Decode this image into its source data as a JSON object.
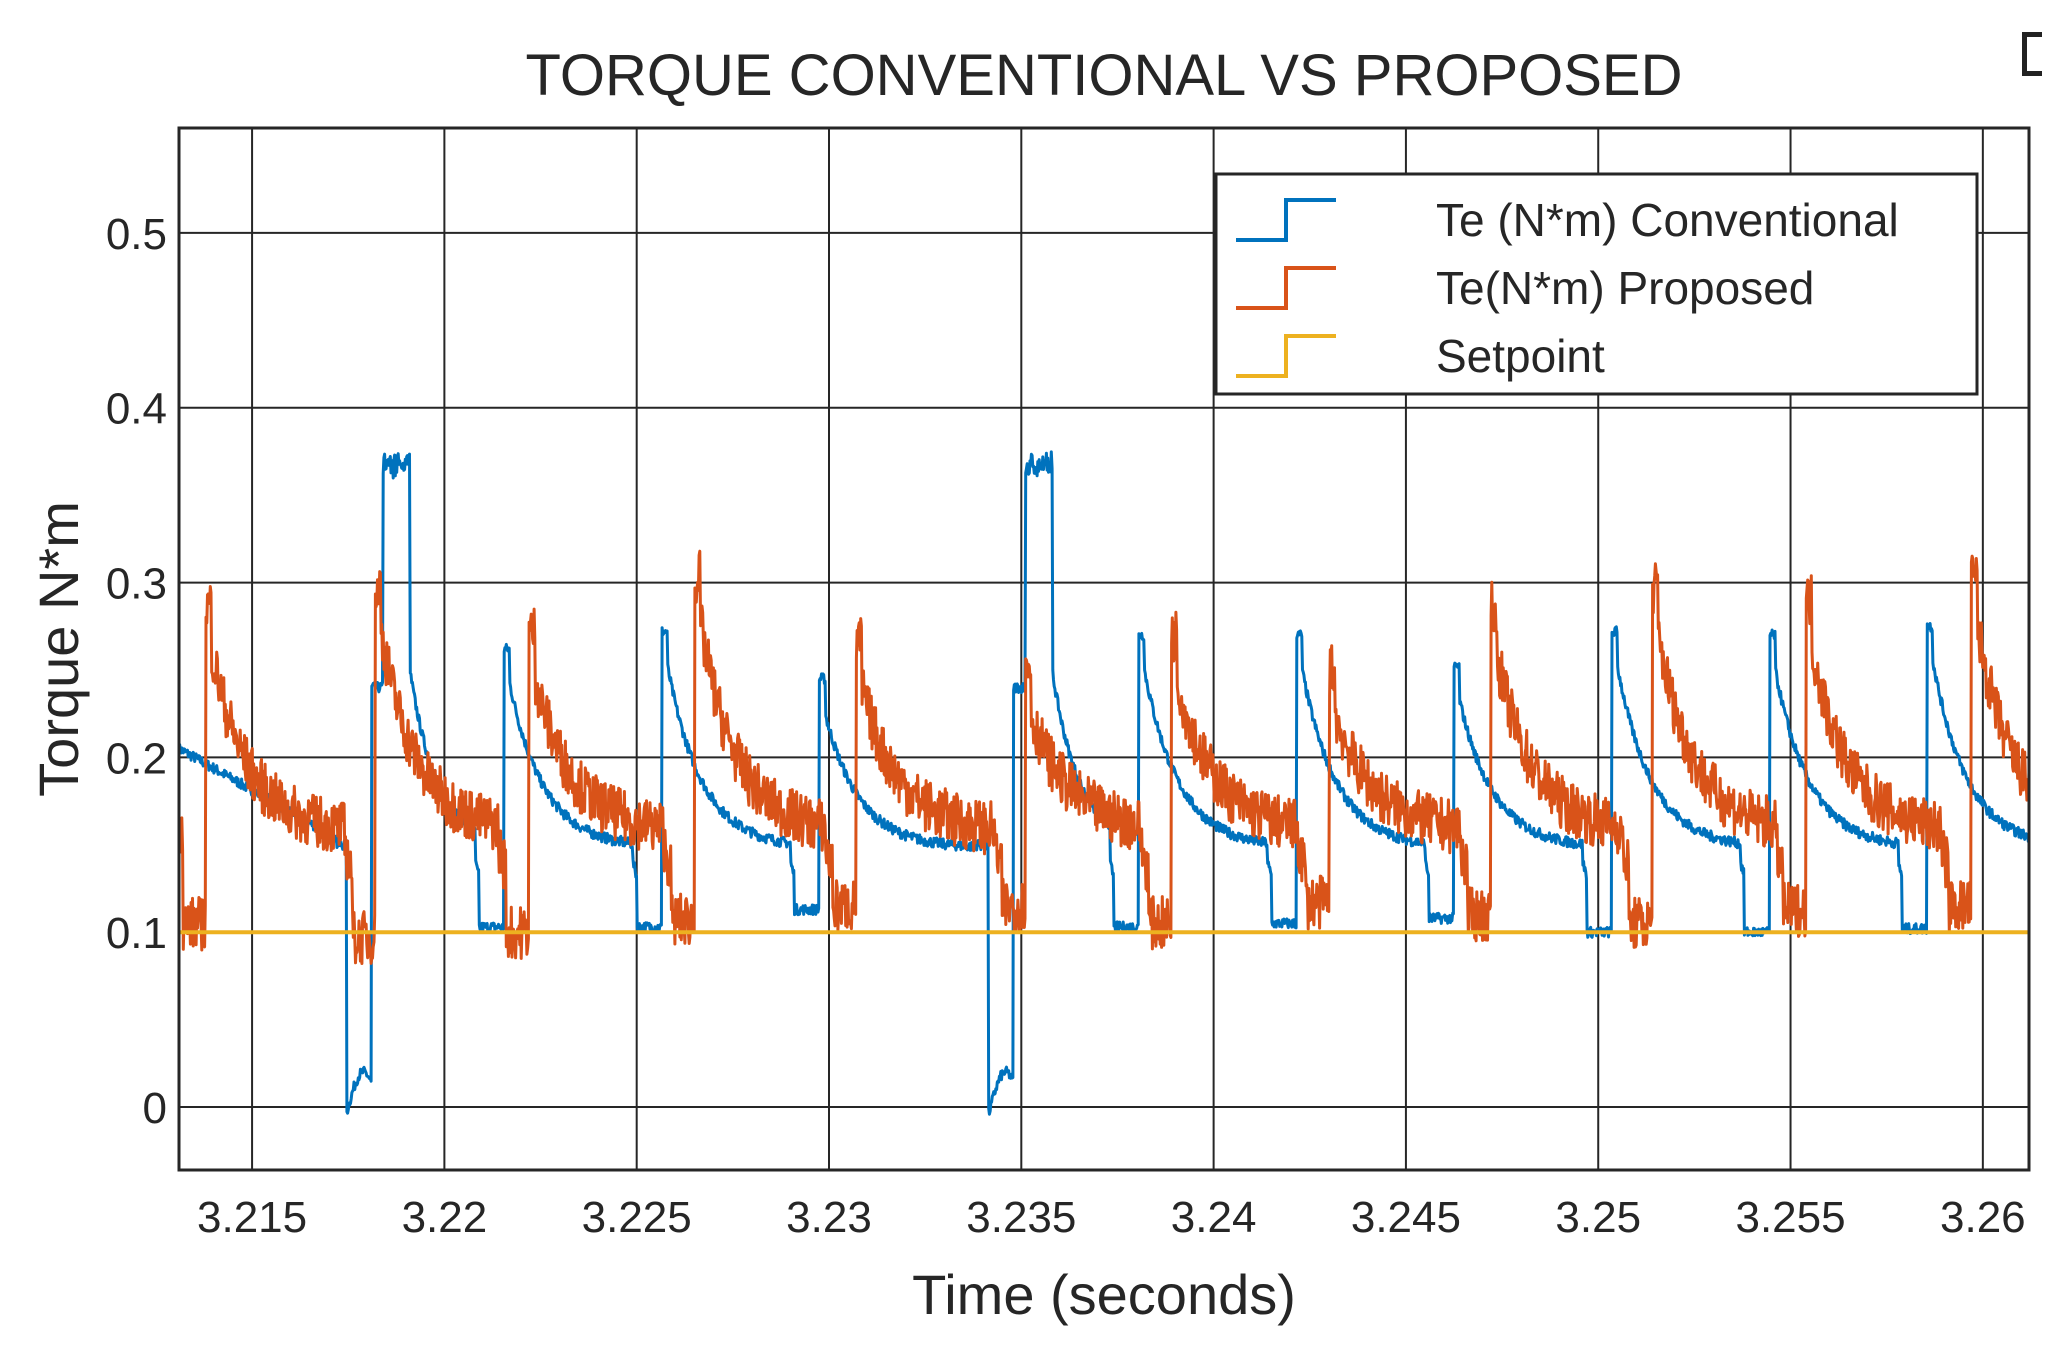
{
  "chart_data": {
    "type": "line",
    "title": "TORQUE CONVENTIONAL VS PROPOSED",
    "xlabel": "Time (seconds)",
    "ylabel": "Torque N*m",
    "xlim": [
      3.2131,
      3.2612
    ],
    "ylim": [
      -0.036,
      0.56
    ],
    "xticks": [
      3.215,
      3.22,
      3.225,
      3.23,
      3.235,
      3.24,
      3.245,
      3.25,
      3.255,
      3.26
    ],
    "xtick_labels": [
      "3.215",
      "3.22",
      "3.225",
      "3.23",
      "3.235",
      "3.24",
      "3.245",
      "3.25",
      "3.255",
      "3.26"
    ],
    "yticks": [
      0,
      0.1,
      0.2,
      0.3,
      0.4,
      0.5
    ],
    "ytick_labels": [
      "0",
      "0.1",
      "0.2",
      "0.3",
      "0.4",
      "0.5"
    ],
    "grid": true,
    "legend_position": "top-right",
    "series": [
      {
        "name": "Te (N*m) Conventional",
        "color": "#0072BD",
        "noise": 0.006,
        "events": [
          {
            "t": 3.2175,
            "amp": "large",
            "min": 0.0,
            "max": 0.372
          },
          {
            "t": 3.2212,
            "amp": "small",
            "min": 0.093,
            "max": 0.262
          },
          {
            "t": 3.2253,
            "amp": "small",
            "min": 0.093,
            "max": 0.272
          },
          {
            "t": 3.2294,
            "amp": "small",
            "min": 0.103,
            "max": 0.245
          },
          {
            "t": 3.2342,
            "amp": "large",
            "min": 0.0,
            "max": 0.372
          },
          {
            "t": 3.2377,
            "amp": "small",
            "min": 0.093,
            "max": 0.27
          },
          {
            "t": 3.2418,
            "amp": "small",
            "min": 0.095,
            "max": 0.27
          },
          {
            "t": 3.2459,
            "amp": "small",
            "min": 0.098,
            "max": 0.252
          },
          {
            "t": 3.25,
            "amp": "small",
            "min": 0.09,
            "max": 0.272
          },
          {
            "t": 3.2541,
            "amp": "small",
            "min": 0.09,
            "max": 0.27
          },
          {
            "t": 3.2582,
            "amp": "small",
            "min": 0.092,
            "max": 0.275
          }
        ]
      },
      {
        "name": "Te(N*m) Proposed",
        "color": "#D95319",
        "noise": 0.014,
        "events": [
          {
            "t": 3.2135,
            "min": 0.1,
            "max": 0.287
          },
          {
            "t": 3.2179,
            "min": 0.092,
            "max": 0.298
          },
          {
            "t": 3.2219,
            "min": 0.095,
            "max": 0.272
          },
          {
            "t": 3.2262,
            "min": 0.102,
            "max": 0.303
          },
          {
            "t": 3.2304,
            "min": 0.11,
            "max": 0.265
          },
          {
            "t": 3.2348,
            "min": 0.11,
            "max": 0.25
          },
          {
            "t": 3.2386,
            "min": 0.1,
            "max": 0.27
          },
          {
            "t": 3.2427,
            "min": 0.112,
            "max": 0.25
          },
          {
            "t": 3.2469,
            "min": 0.105,
            "max": 0.285
          },
          {
            "t": 3.2511,
            "min": 0.1,
            "max": 0.297
          },
          {
            "t": 3.2551,
            "min": 0.108,
            "max": 0.29
          },
          {
            "t": 3.2594,
            "min": 0.11,
            "max": 0.302
          }
        ]
      },
      {
        "name": "Setpoint",
        "color": "#EDB120",
        "x": [
          3.2131,
          3.2612
        ],
        "values": [
          0.1,
          0.1
        ]
      }
    ]
  }
}
